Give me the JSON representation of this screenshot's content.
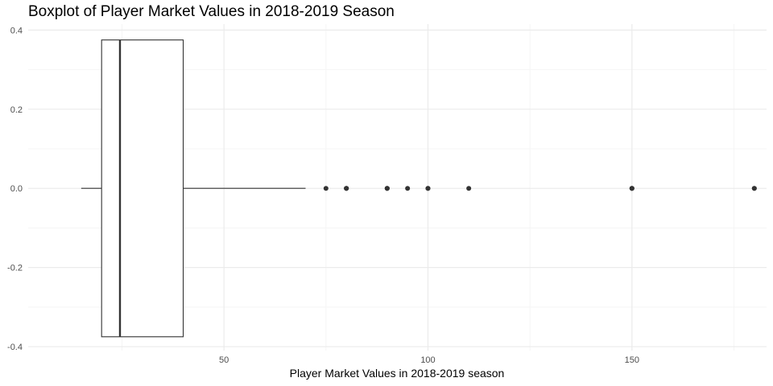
{
  "chart_data": {
    "type": "boxplot",
    "title": "Boxplot of Player Market Values in 2018-2019 Season",
    "xlabel": "Player Market Values in 2018-2019 season",
    "ylabel": "",
    "xlim": [
      2,
      183
    ],
    "ylim": [
      -0.4,
      0.4
    ],
    "x_ticks": [
      50,
      100,
      150
    ],
    "x_minor_ticks": [
      25,
      75,
      125,
      175
    ],
    "y_ticks": [
      -0.4,
      -0.2,
      0.0,
      0.2,
      0.4
    ],
    "y_tick_labels": [
      "-0.4",
      "-0.2",
      "0.0",
      "0.2",
      "0.4"
    ],
    "y_minor_ticks": [
      -0.3,
      -0.1,
      0.1,
      0.3
    ],
    "grid": true,
    "box": {
      "whisker_low": 15,
      "q1": 20,
      "median": 24.5,
      "q3": 40,
      "whisker_high": 70,
      "y_center": 0,
      "y_low": -0.375,
      "y_high": 0.375
    },
    "outliers": [
      75,
      80,
      80,
      80,
      90,
      90,
      90,
      95,
      100,
      100,
      110,
      150,
      150,
      150,
      180,
      180
    ]
  },
  "colors": {
    "grid_major": "#ebebeb",
    "grid_minor": "#f5f5f5",
    "box_stroke": "#333333",
    "outlier": "#333333"
  }
}
